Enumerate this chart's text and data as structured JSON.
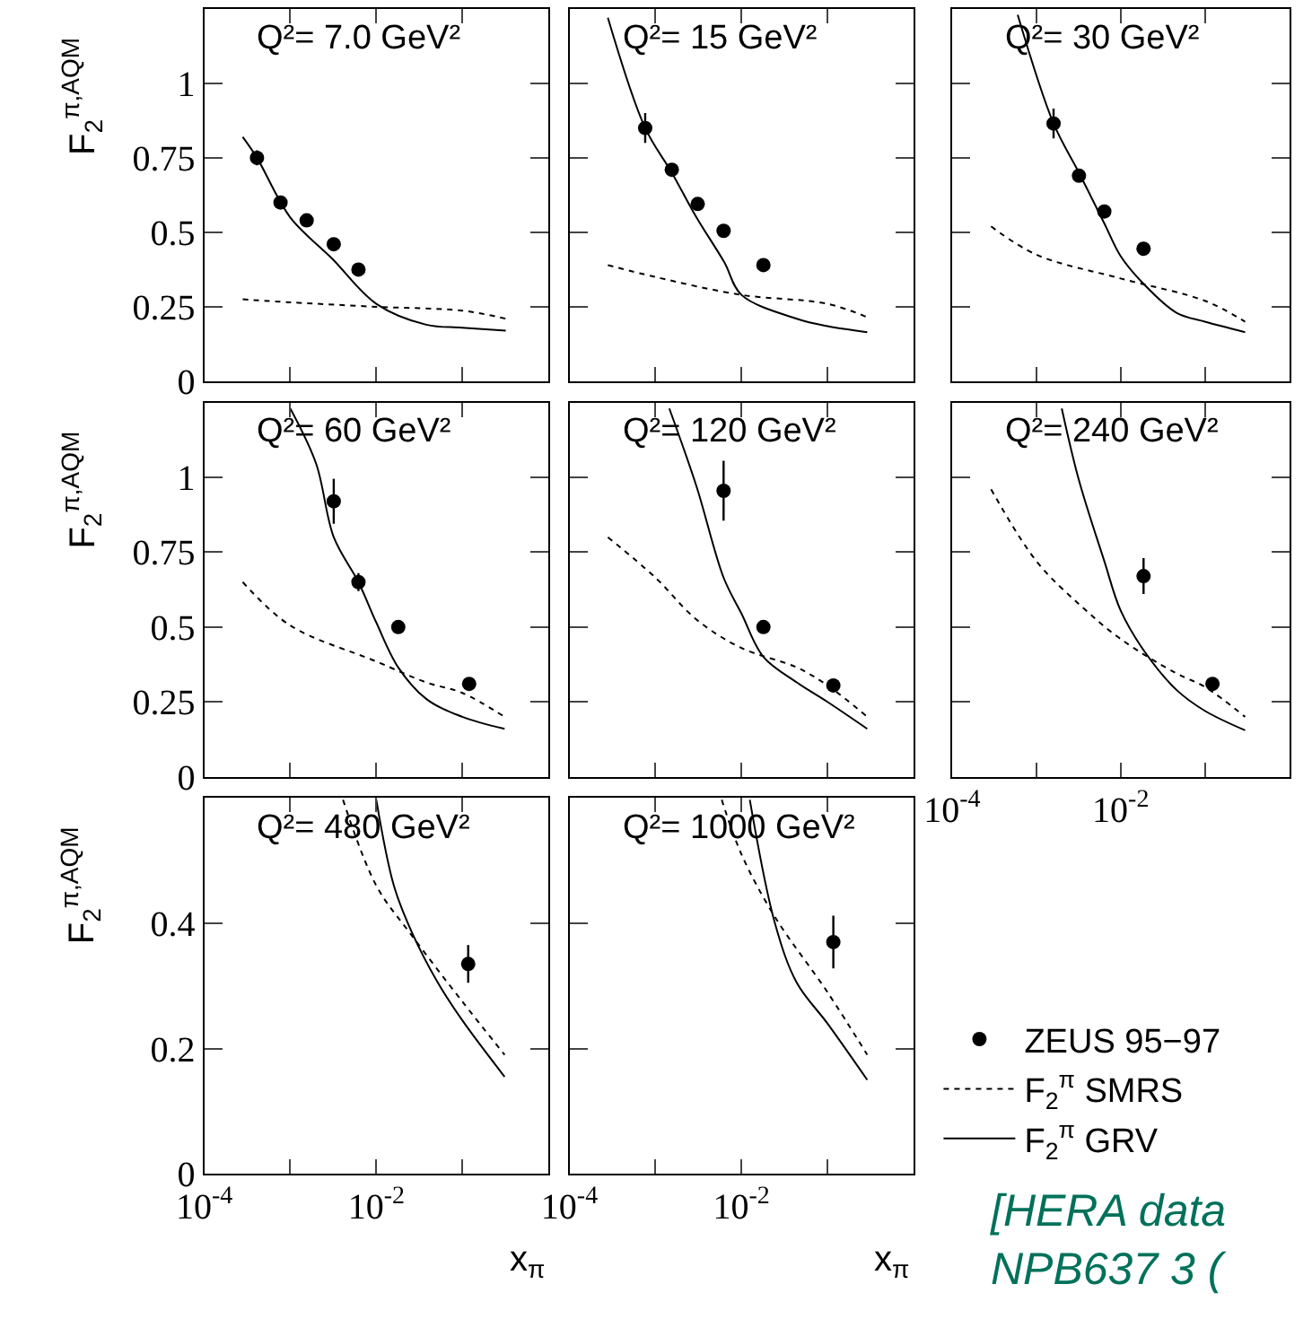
{
  "chart_data": [
    {
      "type": "line",
      "title": "Q²= 7.0 GeV²",
      "ylabel": "F$_{2}$$^{π,AQM}$",
      "xlim": [
        0.0001,
        1
      ],
      "ylim": [
        0,
        1.25
      ],
      "xticks": [
        {
          "value": 0.0001,
          "label": "10$^{-4}$"
        },
        {
          "value": 0.001,
          "label": null
        },
        {
          "value": 0.01,
          "label": "10$^{-2}$"
        },
        {
          "value": 0.1,
          "label": null
        },
        {
          "value": 1,
          "label": null
        }
      ],
      "yticks": [
        0,
        0.25,
        0.5,
        0.75,
        1
      ],
      "log": "x",
      "tick_labels": "y",
      "grid": false,
      "series": [
        {
          "type": "scatter",
          "color": "#000000",
          "marker": "circle",
          "x": [
            0.00041,
            0.00077,
            0.00155,
            0.0032,
            0.0062
          ],
          "values": [
            0.75,
            0.6,
            0.54,
            0.46,
            0.375
          ],
          "errors": [
            0.025,
            0.01,
            0.01,
            0.01,
            0.01
          ]
        },
        {
          "type": "line",
          "color": "#000000",
          "line_style": "dotted",
          "x": [
            0.00028,
            0.001,
            0.01,
            0.1,
            0.32
          ],
          "values": [
            0.275,
            0.265,
            0.25,
            0.237,
            0.21
          ]
        },
        {
          "type": "line",
          "color": "#000000",
          "line_style": "solid",
          "x": [
            0.00028,
            0.00041,
            0.001,
            0.0031,
            0.01,
            0.038,
            0.1,
            0.32
          ],
          "values": [
            0.82,
            0.75,
            0.55,
            0.41,
            0.26,
            0.19,
            0.18,
            0.17
          ]
        }
      ]
    },
    {
      "type": "line",
      "title": "Q²= 15 GeV²",
      "xlim": [
        0.0001,
        1
      ],
      "ylim": [
        0,
        1.25
      ],
      "xticks": [
        {
          "value": 0.0001,
          "label": "10$^{-4}$"
        },
        {
          "value": 0.001,
          "label": null
        },
        {
          "value": 0.01,
          "label": "10$^{-2}$"
        },
        {
          "value": 0.1,
          "label": null
        },
        {
          "value": 1,
          "label": null
        }
      ],
      "yticks": [
        0,
        0.25,
        0.5,
        0.75,
        1
      ],
      "log": "x",
      "tick_labels": false,
      "grid": false,
      "series": [
        {
          "type": "scatter",
          "color": "#000000",
          "marker": "circle",
          "x": [
            0.00076,
            0.00155,
            0.0031,
            0.0062,
            0.018
          ],
          "values": [
            0.85,
            0.71,
            0.595,
            0.505,
            0.39
          ],
          "errors": [
            0.05,
            0.01,
            0.01,
            0.01,
            0.01
          ]
        },
        {
          "type": "line",
          "color": "#000000",
          "line_style": "dotted",
          "x": [
            0.00028,
            0.001,
            0.01,
            0.1,
            0.29
          ],
          "values": [
            0.39,
            0.35,
            0.29,
            0.26,
            0.215
          ]
        },
        {
          "type": "line",
          "color": "#000000",
          "line_style": "solid",
          "x": [
            0.00028,
            0.00076,
            0.00155,
            0.003,
            0.0063,
            0.01,
            0.044,
            0.1,
            0.29
          ],
          "values": [
            1.22,
            0.85,
            0.7,
            0.55,
            0.4,
            0.29,
            0.21,
            0.185,
            0.165
          ]
        }
      ]
    },
    {
      "type": "line",
      "title": "Q²= 30 GeV²",
      "xlim": [
        0.0001,
        1
      ],
      "ylim": [
        0,
        1.25
      ],
      "xticks": [
        {
          "value": 0.0001,
          "label": "10$^{-4}$"
        },
        {
          "value": 0.001,
          "label": null
        },
        {
          "value": 0.01,
          "label": "10$^{-2}$"
        },
        {
          "value": 0.1,
          "label": null
        },
        {
          "value": 1,
          "label": null
        }
      ],
      "yticks": [
        0,
        0.25,
        0.5,
        0.75,
        1
      ],
      "log": "x",
      "tick_labels": false,
      "grid": false,
      "series": [
        {
          "type": "scatter",
          "color": "#000000",
          "marker": "circle",
          "x": [
            0.0016,
            0.0032,
            0.0064,
            0.0187
          ],
          "values": [
            0.865,
            0.69,
            0.57,
            0.445
          ],
          "errors": [
            0.05,
            0.015,
            0.01,
            0.01
          ]
        },
        {
          "type": "line",
          "color": "#000000",
          "line_style": "dotted",
          "x": [
            0.00029,
            0.001,
            0.01,
            0.1,
            0.3
          ],
          "values": [
            0.52,
            0.425,
            0.345,
            0.27,
            0.2
          ]
        },
        {
          "type": "line",
          "color": "#000000",
          "line_style": "solid",
          "x": [
            0.0006,
            0.0016,
            0.0032,
            0.0064,
            0.01,
            0.019,
            0.046,
            0.1,
            0.3
          ],
          "values": [
            1.23,
            0.865,
            0.7,
            0.53,
            0.42,
            0.325,
            0.23,
            0.2,
            0.165
          ]
        }
      ]
    },
    {
      "type": "line",
      "title": "Q²= 60 GeV²",
      "ylabel": "F$_{2}$$^{π,AQM}$",
      "xlim": [
        0.0001,
        1
      ],
      "ylim": [
        0,
        1.25
      ],
      "xticks": [
        {
          "value": 0.0001,
          "label": "10$^{-4}$"
        },
        {
          "value": 0.001,
          "label": null
        },
        {
          "value": 0.01,
          "label": "10$^{-2}$"
        },
        {
          "value": 0.1,
          "label": null
        },
        {
          "value": 1,
          "label": null
        }
      ],
      "yticks": [
        0,
        0.25,
        0.5,
        0.75,
        1
      ],
      "log": "x",
      "tick_labels": "y",
      "grid": false,
      "series": [
        {
          "type": "scatter",
          "color": "#000000",
          "marker": "circle",
          "x": [
            0.0032,
            0.0062,
            0.018,
            0.12
          ],
          "values": [
            0.92,
            0.65,
            0.5,
            0.31
          ],
          "errors": [
            0.075,
            0.03,
            0.01,
            0.01
          ]
        },
        {
          "type": "line",
          "color": "#000000",
          "line_style": "dotted",
          "x": [
            0.00028,
            0.001,
            0.01,
            0.038,
            0.1,
            0.31
          ],
          "values": [
            0.65,
            0.505,
            0.385,
            0.315,
            0.28,
            0.2
          ]
        },
        {
          "type": "line",
          "color": "#000000",
          "line_style": "solid",
          "x": [
            0.001,
            0.002,
            0.0032,
            0.0062,
            0.01,
            0.018,
            0.038,
            0.1,
            0.31
          ],
          "values": [
            1.23,
            1.045,
            0.8,
            0.65,
            0.515,
            0.365,
            0.26,
            0.2,
            0.16
          ]
        }
      ]
    },
    {
      "type": "line",
      "title": "Q²= 120 GeV²",
      "xlim": [
        0.0001,
        1
      ],
      "ylim": [
        0,
        1.25
      ],
      "xticks": [
        {
          "value": 0.0001,
          "label": "10$^{-4}$"
        },
        {
          "value": 0.001,
          "label": null
        },
        {
          "value": 0.01,
          "label": "10$^{-2}$"
        },
        {
          "value": 0.1,
          "label": null
        },
        {
          "value": 1,
          "label": null
        }
      ],
      "yticks": [
        0,
        0.25,
        0.5,
        0.75,
        1
      ],
      "log": "x",
      "tick_labels": false,
      "grid": false,
      "series": [
        {
          "type": "scatter",
          "color": "#000000",
          "marker": "circle",
          "x": [
            0.0062,
            0.018,
            0.117
          ],
          "values": [
            0.955,
            0.5,
            0.305
          ],
          "errors": [
            0.1,
            0.02,
            0.01
          ]
        },
        {
          "type": "line",
          "color": "#000000",
          "line_style": "dotted",
          "x": [
            0.00028,
            0.001,
            0.003,
            0.01,
            0.044,
            0.1,
            0.29
          ],
          "values": [
            0.8,
            0.665,
            0.525,
            0.43,
            0.365,
            0.305,
            0.2
          ]
        },
        {
          "type": "line",
          "color": "#000000",
          "line_style": "solid",
          "x": [
            0.00145,
            0.003,
            0.0062,
            0.01,
            0.018,
            0.044,
            0.1,
            0.29
          ],
          "values": [
            1.23,
            0.97,
            0.665,
            0.545,
            0.4,
            0.315,
            0.25,
            0.16
          ]
        }
      ]
    },
    {
      "type": "line",
      "title": "Q²= 240 GeV²",
      "xlim": [
        0.0001,
        1
      ],
      "ylim": [
        0,
        1.25
      ],
      "xticks": [
        {
          "value": 0.0001,
          "label": "10$^{-4}$"
        },
        {
          "value": 0.001,
          "label": null
        },
        {
          "value": 0.01,
          "label": "10$^{-2}$"
        },
        {
          "value": 0.1,
          "label": null
        },
        {
          "value": 1,
          "label": null
        }
      ],
      "yticks": [
        0,
        0.25,
        0.5,
        0.75,
        1
      ],
      "log": "x",
      "tick_labels": "x",
      "grid": false,
      "series": [
        {
          "type": "scatter",
          "color": "#000000",
          "marker": "circle",
          "x": [
            0.0187,
            0.123
          ],
          "values": [
            0.67,
            0.31
          ],
          "errors": [
            0.06,
            0.01
          ]
        },
        {
          "type": "line",
          "color": "#000000",
          "line_style": "dotted",
          "x": [
            0.00029,
            0.001,
            0.0034,
            0.01,
            0.046,
            0.1,
            0.3
          ],
          "values": [
            0.96,
            0.72,
            0.57,
            0.46,
            0.345,
            0.3,
            0.2
          ]
        },
        {
          "type": "line",
          "color": "#000000",
          "line_style": "solid",
          "x": [
            0.002,
            0.0032,
            0.0064,
            0.01,
            0.019,
            0.046,
            0.1,
            0.3
          ],
          "values": [
            1.23,
            0.99,
            0.72,
            0.555,
            0.42,
            0.29,
            0.22,
            0.155
          ]
        }
      ]
    },
    {
      "type": "line",
      "title": "Q²= 480 GeV²",
      "ylabel": "F$_{2}$$^{π,AQM}$",
      "xlabel": "x$_{π}$",
      "xlim": [
        0.0001,
        1
      ],
      "ylim": [
        0,
        0.6
      ],
      "xticks": [
        {
          "value": 0.0001,
          "label": "10$^{-4}$"
        },
        {
          "value": 0.001,
          "label": null
        },
        {
          "value": 0.01,
          "label": "10$^{-2}$"
        },
        {
          "value": 0.1,
          "label": null
        },
        {
          "value": 1,
          "label": null
        }
      ],
      "yticks": [
        0,
        0.2,
        0.4
      ],
      "log": "x",
      "grid": false,
      "series": [
        {
          "type": "scatter",
          "color": "#000000",
          "marker": "circle",
          "x": [
            0.117
          ],
          "values": [
            0.335
          ],
          "errors": [
            0.03
          ]
        },
        {
          "type": "line",
          "color": "#000000",
          "line_style": "dotted",
          "x": [
            0.0041,
            0.01,
            0.026,
            0.1,
            0.31
          ],
          "values": [
            0.597,
            0.46,
            0.38,
            0.275,
            0.19
          ]
        },
        {
          "type": "line",
          "color": "#000000",
          "line_style": "solid",
          "x": [
            0.01,
            0.016,
            0.026,
            0.052,
            0.1,
            0.31
          ],
          "values": [
            0.597,
            0.46,
            0.385,
            0.305,
            0.245,
            0.155
          ]
        }
      ]
    },
    {
      "type": "line",
      "title": "Q²= 1000 GeV²",
      "xlabel": "x$_{π}$",
      "xlim": [
        0.0001,
        1
      ],
      "ylim": [
        0,
        0.6
      ],
      "xticks": [
        {
          "value": 0.0001,
          "label": "10$^{-4}$"
        },
        {
          "value": 0.001,
          "label": null
        },
        {
          "value": 0.01,
          "label": "10$^{-2}$"
        },
        {
          "value": 0.1,
          "label": null
        },
        {
          "value": 1,
          "label": null
        }
      ],
      "yticks": [
        0,
        0.2,
        0.4
      ],
      "log": "x",
      "tick_labels": "x",
      "grid": false,
      "legend": "bottom right",
      "annotations": [
        "[HERA data\nNPB637 3 ("
      ],
      "series": [
        {
          "type": "scatter",
          "name": "ZEUS 95−97",
          "color": "#000000",
          "marker": "circle",
          "x": [
            0.117
          ],
          "values": [
            0.37
          ],
          "errors": [
            0.042
          ]
        },
        {
          "type": "line",
          "name": "F$_{2}$$^{π}$ SMRS",
          "color": "#000000",
          "line_style": "dotted",
          "x": [
            0.0059,
            0.01,
            0.0245,
            0.1,
            0.29
          ],
          "values": [
            0.597,
            0.51,
            0.41,
            0.29,
            0.19
          ]
        },
        {
          "type": "line",
          "name": "F$_{2}$$^{π}$ GRV",
          "color": "#000000",
          "line_style": "solid",
          "x": [
            0.0125,
            0.0245,
            0.044,
            0.1,
            0.29
          ],
          "values": [
            0.597,
            0.4,
            0.305,
            0.24,
            0.15
          ]
        }
      ]
    }
  ]
}
